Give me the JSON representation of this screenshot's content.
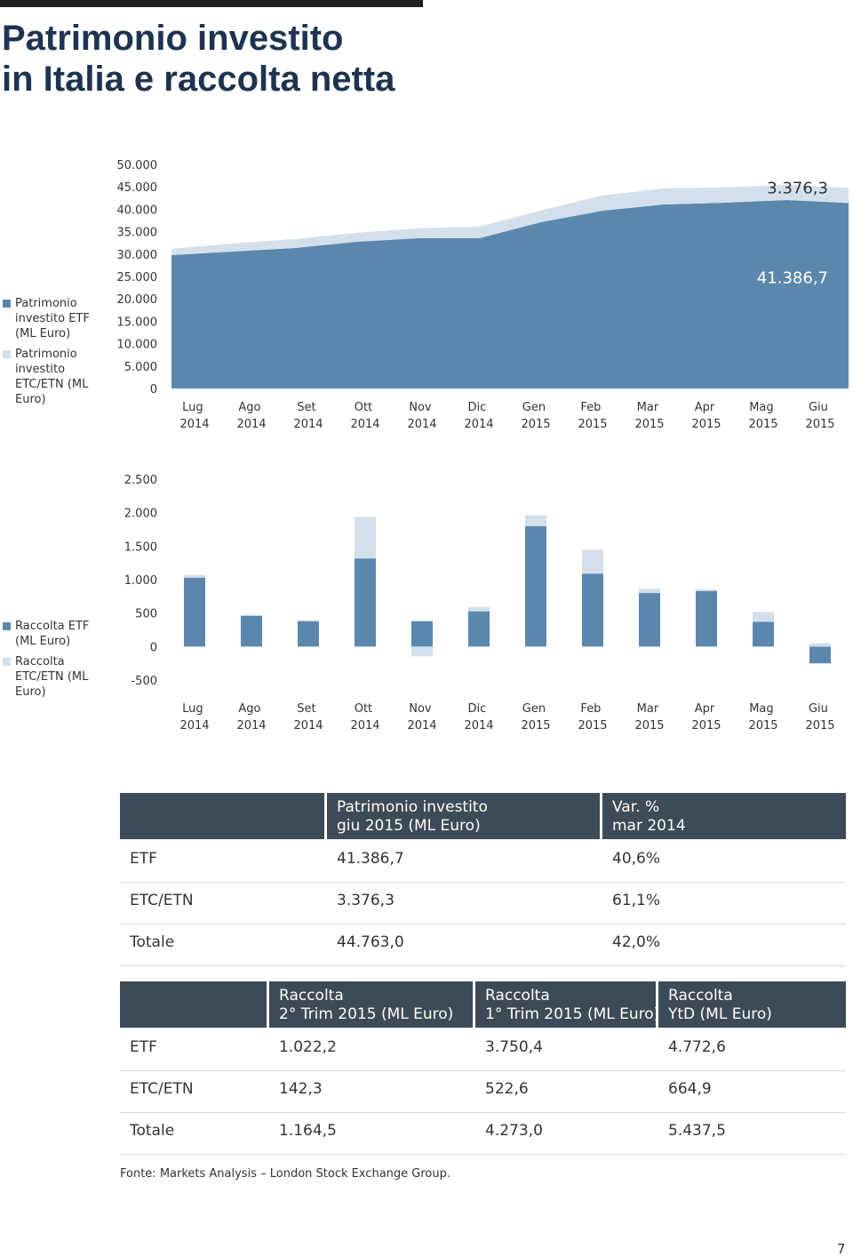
{
  "title": [
    "Patrimonio investito",
    "in Italia e raccolta netta"
  ],
  "chart_data": [
    {
      "type": "area",
      "stacked": true,
      "categories": [
        "Lug 2014",
        "Ago 2014",
        "Set 2014",
        "Ott 2014",
        "Nov 2014",
        "Dic 2014",
        "Gen 2015",
        "Feb 2015",
        "Mar 2015",
        "Apr 2015",
        "Mag 2015",
        "Giu 2015"
      ],
      "series": [
        {
          "name": "Patrimonio investito ETF (ML Euro)",
          "color": "#5b87ad",
          "values": [
            29760,
            30560,
            31350,
            32740,
            33530,
            33530,
            37100,
            39680,
            41070,
            41470,
            42060,
            41386.7
          ],
          "value_labels": [
            null,
            null,
            null,
            null,
            null,
            null,
            null,
            null,
            null,
            null,
            null,
            "41.386,7"
          ]
        },
        {
          "name": "Patrimonio investito ETC/ETN (ML Euro)",
          "color": "#d3dfea",
          "values": [
            1400,
            1800,
            2000,
            2000,
            2200,
            2600,
            2600,
            3400,
            3600,
            3400,
            3400,
            3376.3
          ],
          "value_labels": [
            null,
            null,
            null,
            null,
            null,
            null,
            null,
            null,
            null,
            null,
            null,
            "3.376,3"
          ]
        }
      ],
      "ylim": [
        0,
        50000
      ],
      "yticks": [
        0,
        {
          "value": 5000,
          "label": "5.000"
        },
        {
          "value": 10000,
          "label": "10.000"
        },
        {
          "value": 15000,
          "label": "15.000"
        },
        {
          "value": 20000,
          "label": "20.000"
        },
        {
          "value": 25000,
          "label": "25.000"
        },
        {
          "value": 30000,
          "label": "30.000"
        },
        {
          "value": 35000,
          "label": "35.000"
        },
        {
          "value": 40000,
          "label": "40.000"
        },
        {
          "value": 45000,
          "label": "45.000"
        },
        {
          "value": 50000,
          "label": "50.000"
        }
      ],
      "grid": false
    },
    {
      "type": "bar",
      "stacked": true,
      "categories": [
        "Lug 2014",
        "Ago 2014",
        "Set 2014",
        "Ott 2014",
        "Nov 2014",
        "Dic 2014",
        "Gen 2015",
        "Feb 2015",
        "Mar 2015",
        "Apr 2015",
        "Mag 2015",
        "Giu 2015"
      ],
      "series": [
        {
          "name": "Raccolta ETF (ML Euro)",
          "color": "#5b87ad",
          "values": [
            1030,
            460,
            380,
            1316,
            380,
            526,
            1800,
            1090,
            800,
            830,
            370,
            -250
          ]
        },
        {
          "name": "Raccolta ETC/ETN (ML Euro)",
          "color": "#d3dfea",
          "values": [
            40,
            10,
            15,
            620,
            -145,
            66,
            160,
            355,
            66,
            25,
            145,
            50
          ]
        }
      ],
      "ylim": [
        -500,
        2500
      ],
      "yticks": [
        -500,
        0,
        500,
        {
          "value": 1000,
          "label": "1.000"
        },
        {
          "value": 1500,
          "label": "1.500"
        },
        {
          "value": 2000,
          "label": "2.000"
        },
        {
          "value": 2500,
          "label": "2.500"
        }
      ],
      "grid": false
    }
  ],
  "tables": [
    {
      "header": [
        [
          "Patrimonio investito",
          "giu 2015 (ML Euro)"
        ],
        [
          "Var. %",
          "mar 2014"
        ]
      ],
      "rows": [
        [
          "ETF",
          "41.386,7",
          "40,6%"
        ],
        [
          "ETC/ETN",
          "3.376,3",
          "61,1%"
        ],
        [
          "Totale",
          "44.763,0",
          "42,0%"
        ]
      ]
    },
    {
      "header": [
        [
          "Raccolta",
          "2° Trim 2015 (ML Euro)"
        ],
        [
          "Raccolta",
          "1° Trim 2015 (ML Euro)"
        ],
        [
          "Raccolta",
          "YtD (ML Euro)"
        ]
      ],
      "rows": [
        [
          "ETF",
          "1.022,2",
          "3.750,4",
          "4.772,6"
        ],
        [
          "ETC/ETN",
          "142,3",
          "522,6",
          "664,9"
        ],
        [
          "Totale",
          "1.164,5",
          "4.273,0",
          "5.437,5"
        ]
      ]
    }
  ],
  "source": "Fonte: Markets Analysis – London Stock Exchange Group.",
  "page_number": "7"
}
